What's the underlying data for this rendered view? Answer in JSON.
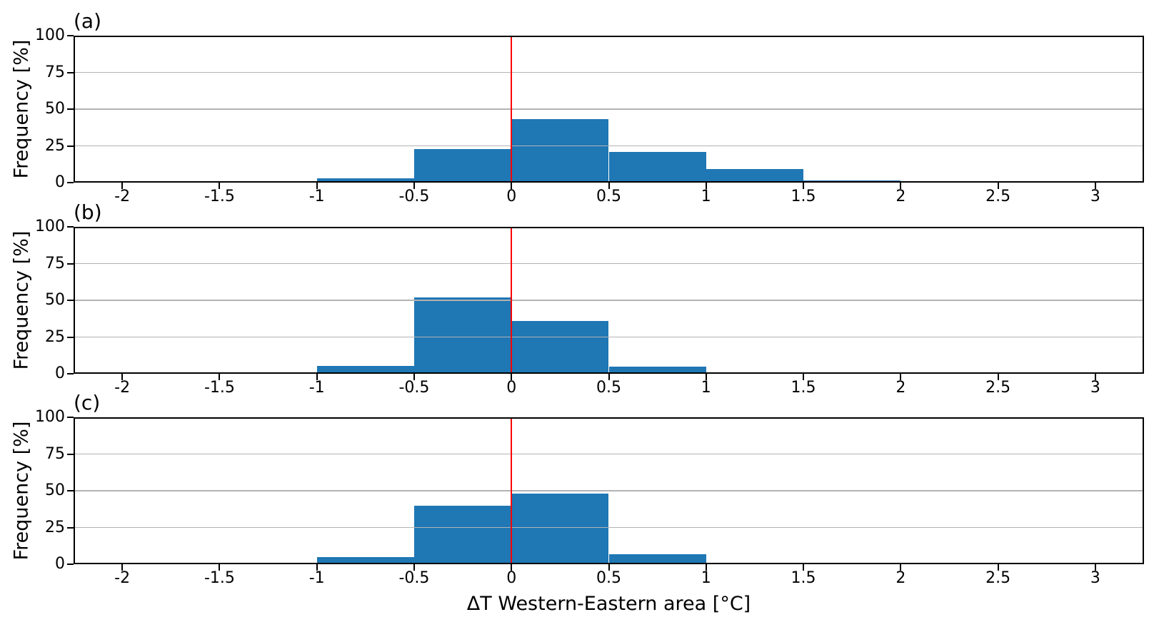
{
  "xlabel": "ΔT Western-Eastern area [°C]",
  "style": {
    "bar_color": "#1f77b4",
    "vline_color": "#ff0000",
    "grid_color": "#b3b3b3",
    "spine_color": "#000000",
    "background": "#ffffff",
    "text_color": "#000000"
  },
  "chart_data": [
    {
      "type": "bar",
      "subtype": "histogram",
      "title": "(a)",
      "ylabel": "Frequency [%]",
      "xlabel": "",
      "bin_edges": [
        -1.5,
        -1.0,
        -0.5,
        0.0,
        0.5,
        1.0,
        1.5,
        2.0,
        2.5
      ],
      "values": [
        0.7,
        3,
        23,
        43,
        21,
        9,
        1.5,
        0.7
      ],
      "xlim": [
        -2.25,
        3.25
      ],
      "ylim": [
        0,
        100
      ],
      "ytick_values": [
        0,
        25,
        50,
        75,
        100
      ],
      "ytick_labels": [
        "0",
        "25",
        "50",
        "75",
        "100"
      ],
      "xtick_values": [
        -2,
        -1.5,
        -1,
        -0.5,
        0,
        0.5,
        1,
        1.5,
        2,
        2.5,
        3
      ],
      "xtick_labels": [
        "-2",
        "-1.5",
        "-1",
        "-0.5",
        "0",
        "0.5",
        "1",
        "1.5",
        "2",
        "2.5",
        "3"
      ],
      "vline_x": 0,
      "grid": true,
      "legend": "none"
    },
    {
      "type": "bar",
      "subtype": "histogram",
      "title": "(b)",
      "ylabel": "Frequency [%]",
      "xlabel": "",
      "bin_edges": [
        -1.5,
        -1.0,
        -0.5,
        0.0,
        0.5,
        1.0,
        1.5
      ],
      "values": [
        0.5,
        5.5,
        52,
        36,
        5,
        0.5
      ],
      "xlim": [
        -2.25,
        3.25
      ],
      "ylim": [
        0,
        100
      ],
      "ytick_values": [
        0,
        25,
        50,
        75,
        100
      ],
      "ytick_labels": [
        "0",
        "25",
        "50",
        "75",
        "100"
      ],
      "xtick_values": [
        -2,
        -1.5,
        -1,
        -0.5,
        0,
        0.5,
        1,
        1.5,
        2,
        2.5,
        3
      ],
      "xtick_labels": [
        "-2",
        "-1.5",
        "-1",
        "-0.5",
        "0",
        "0.5",
        "1",
        "1.5",
        "2",
        "2.5",
        "3"
      ],
      "vline_x": 0,
      "grid": true,
      "legend": "none"
    },
    {
      "type": "bar",
      "subtype": "histogram",
      "title": "(c)",
      "ylabel": "Frequency [%]",
      "xlabel": "ΔT Western-Eastern area [°C]",
      "bin_edges": [
        -1.0,
        -0.5,
        0.0,
        0.5,
        1.0,
        1.5
      ],
      "values": [
        5,
        40,
        48,
        7,
        1
      ],
      "xlim": [
        -2.25,
        3.25
      ],
      "ylim": [
        0,
        100
      ],
      "ytick_values": [
        0,
        25,
        50,
        75,
        100
      ],
      "ytick_labels": [
        "0",
        "25",
        "50",
        "75",
        "100"
      ],
      "xtick_values": [
        -2,
        -1.5,
        -1,
        -0.5,
        0,
        0.5,
        1,
        1.5,
        2,
        2.5,
        3
      ],
      "xtick_labels": [
        "-2",
        "-1.5",
        "-1",
        "-0.5",
        "0",
        "0.5",
        "1",
        "1.5",
        "2",
        "2.5",
        "3"
      ],
      "vline_x": 0,
      "grid": true,
      "legend": "none"
    }
  ]
}
